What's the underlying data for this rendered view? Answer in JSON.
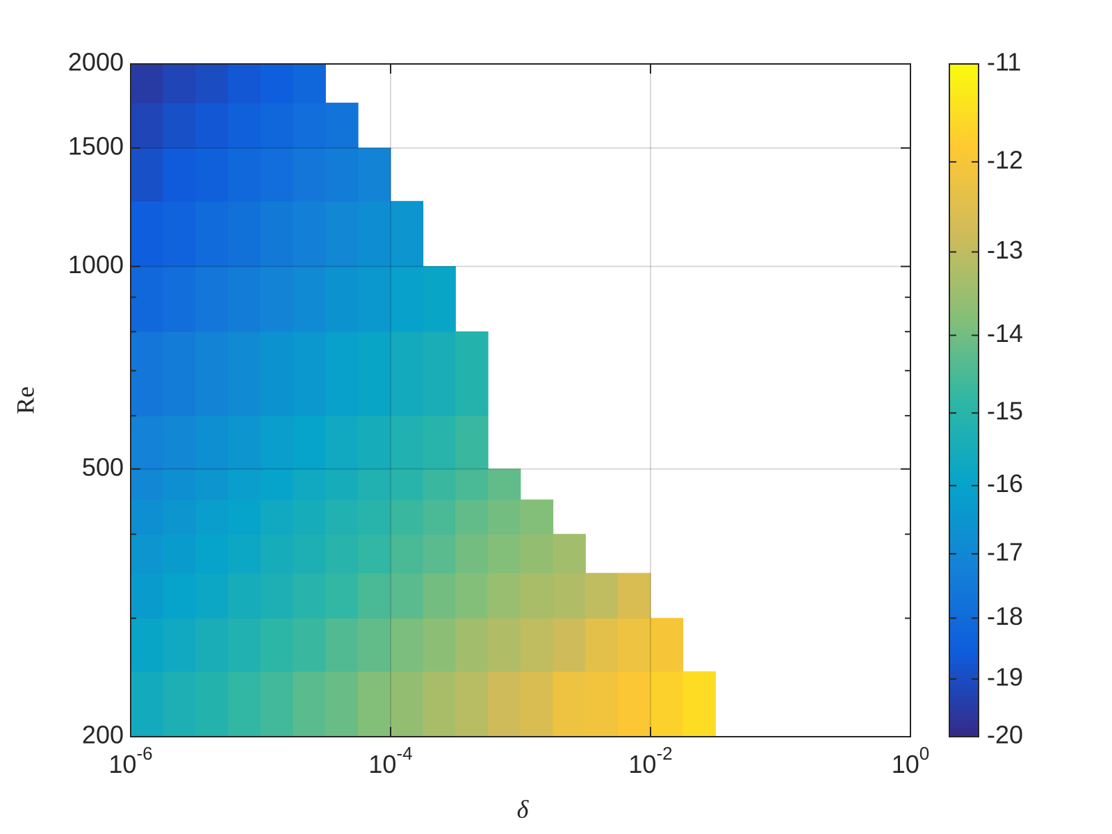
{
  "chart_data": {
    "type": "contourf",
    "xlabel": "δ",
    "ylabel": "Re",
    "xscale": "log",
    "yscale": "log",
    "grid": true,
    "xlim": [
      1e-06,
      1
    ],
    "ylim": [
      200,
      2000
    ],
    "xticks": [
      {
        "value": 1e-06,
        "label": "10",
        "exponent": "-6"
      },
      {
        "value": 0.0001,
        "label": "10",
        "exponent": "-4"
      },
      {
        "value": 0.01,
        "label": "10",
        "exponent": "-2"
      },
      {
        "value": 1,
        "label": "10",
        "exponent": "0"
      }
    ],
    "yticks": [
      200,
      500,
      1000,
      1500,
      2000
    ],
    "yminor": [
      300,
      400,
      600,
      700,
      800,
      900
    ],
    "x_edges": [
      1e-06,
      1.778e-06,
      3.162e-06,
      5.623e-06,
      1e-05,
      1.778e-05,
      3.162e-05,
      5.623e-05,
      0.0001,
      0.0001778,
      0.0003162,
      0.0005623,
      0.001,
      0.001778,
      0.003162,
      0.005623,
      0.01,
      0.01778,
      0.03162
    ],
    "y_edges": [
      200,
      250,
      300,
      350,
      400,
      450,
      500,
      600,
      800,
      1000,
      1250,
      1500,
      1750,
      2000
    ],
    "z": [
      [
        -15.6,
        -15.3,
        -15.1,
        -14.8,
        -14.6,
        -14.3,
        -14.1,
        -13.8,
        -13.6,
        -13.3,
        -13.1,
        -12.8,
        -12.6,
        -12.2,
        -12.1,
        -11.9,
        -11.7,
        -11.5
      ],
      [
        -15.9,
        -15.7,
        -15.4,
        -15.2,
        -14.9,
        -14.7,
        -14.4,
        -14.2,
        -13.9,
        -13.7,
        -13.4,
        -13.2,
        -13.0,
        -12.8,
        -12.4,
        -12.2,
        -12.0,
        null
      ],
      [
        -16.3,
        -16.0,
        -15.8,
        -15.5,
        -15.3,
        -15.0,
        -14.8,
        -14.5,
        -14.3,
        -14.0,
        -13.8,
        -13.5,
        -13.3,
        -13.2,
        -13.0,
        -12.6,
        null,
        null
      ],
      [
        -16.5,
        -16.3,
        -16.0,
        -15.8,
        -15.5,
        -15.3,
        -15.0,
        -14.8,
        -14.5,
        -14.3,
        -14.0,
        -13.8,
        -13.6,
        -13.4,
        null,
        null,
        null,
        null
      ],
      [
        -16.7,
        -16.5,
        -16.2,
        -16.0,
        -15.7,
        -15.5,
        -15.2,
        -15.0,
        -14.7,
        -14.5,
        -14.2,
        -14.0,
        -13.8,
        null,
        null,
        null,
        null,
        null
      ],
      [
        -17.0,
        -16.7,
        -16.5,
        -16.2,
        -16.0,
        -15.7,
        -15.5,
        -15.2,
        -15.0,
        -14.7,
        -14.5,
        -14.2,
        null,
        null,
        null,
        null,
        null,
        null
      ],
      [
        -17.2,
        -17.0,
        -16.7,
        -16.5,
        -16.2,
        -16.0,
        -15.7,
        -15.5,
        -15.2,
        -15.0,
        -14.7,
        null,
        null,
        null,
        null,
        null,
        null,
        null
      ],
      [
        -17.6,
        -17.4,
        -17.1,
        -16.9,
        -16.6,
        -16.4,
        -16.1,
        -15.9,
        -15.6,
        -15.4,
        -15.1,
        null,
        null,
        null,
        null,
        null,
        null,
        null
      ],
      [
        -18.1,
        -17.9,
        -17.6,
        -17.4,
        -17.1,
        -16.9,
        -16.6,
        -16.4,
        -16.1,
        -15.9,
        null,
        null,
        null,
        null,
        null,
        null,
        null,
        null
      ],
      [
        -18.5,
        -18.3,
        -18.0,
        -17.8,
        -17.5,
        -17.3,
        -17.0,
        -16.8,
        -16.5,
        null,
        null,
        null,
        null,
        null,
        null,
        null,
        null,
        null
      ],
      [
        -18.9,
        -18.6,
        -18.4,
        -18.1,
        -17.9,
        -17.6,
        -17.4,
        -17.1,
        null,
        null,
        null,
        null,
        null,
        null,
        null,
        null,
        null,
        null
      ],
      [
        -19.2,
        -18.9,
        -18.7,
        -18.4,
        -18.2,
        -17.9,
        -17.7,
        null,
        null,
        null,
        null,
        null,
        null,
        null,
        null,
        null,
        null,
        null
      ],
      [
        -19.5,
        -19.2,
        -19.0,
        -18.7,
        -18.5,
        -18.2,
        null,
        null,
        null,
        null,
        null,
        null,
        null,
        null,
        null,
        null,
        null,
        null
      ]
    ],
    "colorbar": {
      "lim": [
        -20,
        -11
      ],
      "ticks": [
        -20,
        -19,
        -18,
        -17,
        -16,
        -15,
        -14,
        -13,
        -12,
        -11
      ],
      "scale": "log"
    },
    "colormap": [
      "#352a87",
      "#0f5cdd",
      "#1481d6",
      "#06a4ca",
      "#2eb7a4",
      "#87bf77",
      "#d1bb59",
      "#fec832",
      "#f9fb0e"
    ]
  }
}
